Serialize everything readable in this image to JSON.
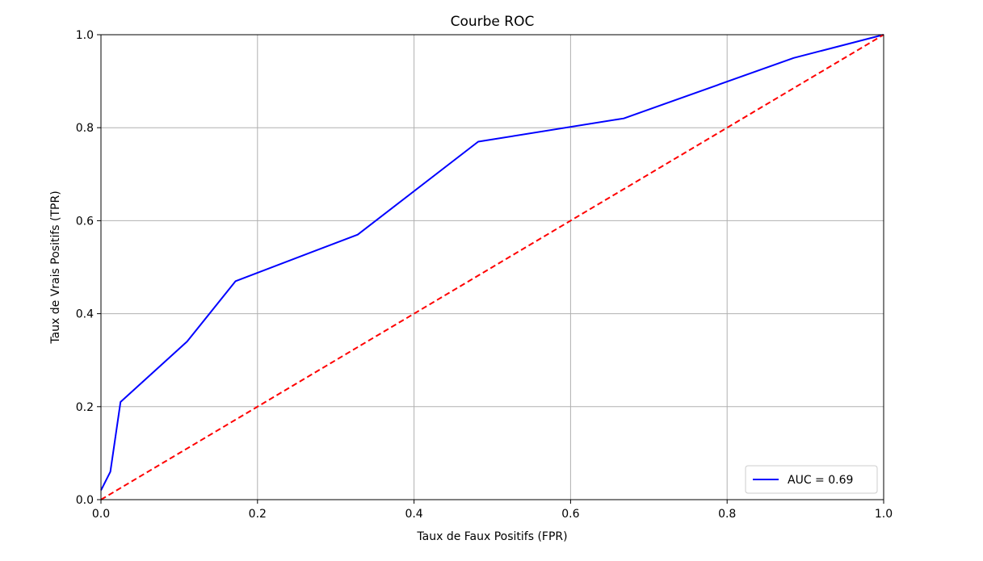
{
  "chart_data": {
    "type": "line",
    "title": "Courbe ROC",
    "xlabel": "Taux de Faux Positifs (FPR)",
    "ylabel": "Taux de Vrais Positifs (TPR)",
    "xlim": [
      0.0,
      1.0
    ],
    "ylim": [
      0.0,
      1.0
    ],
    "xticks": [
      "0.0",
      "0.2",
      "0.4",
      "0.6",
      "0.8",
      "1.0"
    ],
    "yticks": [
      "0.0",
      "0.2",
      "0.4",
      "0.6",
      "0.8",
      "1.0"
    ],
    "grid": true,
    "legend_position": "bottom-right",
    "series": [
      {
        "name": "AUC = 0.69",
        "color": "#0000ff",
        "style": "solid",
        "x": [
          0.0,
          0.012,
          0.025,
          0.11,
          0.172,
          0.328,
          0.482,
          0.668,
          0.885,
          1.0
        ],
        "y": [
          0.02,
          0.06,
          0.21,
          0.34,
          0.47,
          0.57,
          0.77,
          0.82,
          0.95,
          1.0
        ]
      },
      {
        "color": "#ff0000",
        "style": "dashed",
        "x": [
          0.0,
          1.0
        ],
        "y": [
          0.0,
          1.0
        ]
      }
    ]
  }
}
